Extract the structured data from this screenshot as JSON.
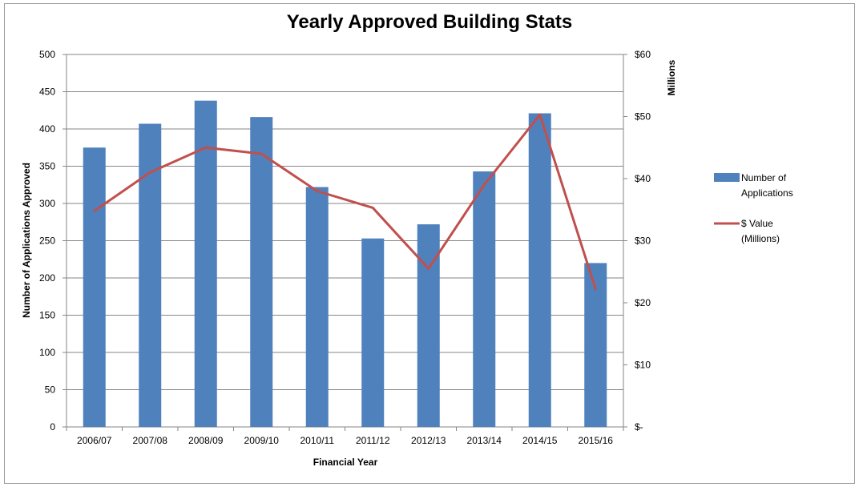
{
  "chart_data": {
    "type": "bar",
    "title": "Yearly Approved Building Stats",
    "xlabel": "Financial Year",
    "ylabel": "Number of Applications Approved",
    "y2label": "Millions",
    "ylim": [
      0,
      500
    ],
    "yticks": [
      "0",
      "50",
      "100",
      "150",
      "200",
      "250",
      "300",
      "350",
      "400",
      "450",
      "500"
    ],
    "y2lim": [
      0,
      60
    ],
    "y2ticks": [
      "$-",
      "$10",
      "$20",
      "$30",
      "$40",
      "$50",
      "$60"
    ],
    "categories": [
      "2006/07",
      "2007/08",
      "2008/09",
      "2009/10",
      "2010/11",
      "2011/12",
      "2012/13",
      "2013/14",
      "2014/15",
      "2015/16"
    ],
    "series": [
      {
        "name": "Number of Applications",
        "type": "bar",
        "axis": "left",
        "color": "#4f81bd",
        "values": [
          375,
          407,
          438,
          416,
          322,
          253,
          272,
          343,
          421,
          220
        ]
      },
      {
        "name": "$ Value (Millions)",
        "type": "line",
        "axis": "right",
        "color": "#c0504d",
        "values": [
          34.8,
          41.0,
          45.0,
          44.0,
          38.0,
          35.3,
          25.5,
          39.0,
          50.3,
          22.2
        ]
      }
    ],
    "legend": {
      "position": "right",
      "entries": [
        {
          "line1": "Number of",
          "line2": "Applications"
        },
        {
          "line1": "$ Value",
          "line2": "(Millions)"
        }
      ]
    },
    "grid": true
  }
}
